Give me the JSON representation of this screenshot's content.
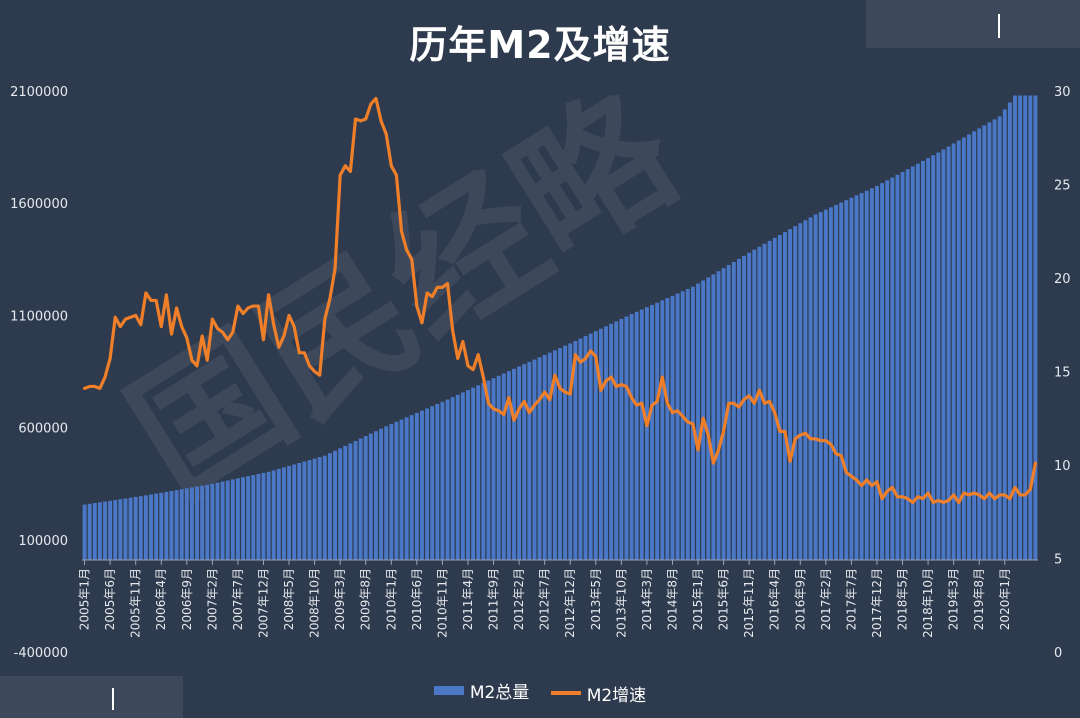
{
  "title": "历年M2及增速",
  "legend": {
    "bar_label": "M2总量",
    "line_label": "M2增速"
  },
  "colors": {
    "bar": "#4a78c7",
    "line": "#f07f2a",
    "background": "#2e3a4d",
    "watermark": "#5a6475"
  },
  "watermark_text": "国民经略",
  "chart_data": {
    "type": "bar+line",
    "title": "历年M2及增速",
    "left_axis": {
      "min": -400000,
      "max": 2100000,
      "ticks": [
        -400000,
        100000,
        600000,
        1100000,
        1600000,
        2100000
      ]
    },
    "right_axis": {
      "min": 0,
      "max": 30,
      "ticks": [
        0,
        5,
        10,
        15,
        20,
        25,
        30
      ]
    },
    "x_tick_labels": [
      "2005年1月",
      "2005年6月",
      "2005年11月",
      "2006年4月",
      "2006年9月",
      "2007年2月",
      "2007年7月",
      "2007年12月",
      "2008年5月",
      "2008年10月",
      "2009年3月",
      "2009年8月",
      "2010年1月",
      "2010年6月",
      "2010年11月",
      "2011年4月",
      "2011年9月",
      "2012年2月",
      "2012年7月",
      "2012年12月",
      "2013年5月",
      "2013年10月",
      "2014年3月",
      "2014年8月",
      "2015年1月",
      "2015年6月",
      "2015年11月",
      "2016年4月",
      "2016年9月",
      "2017年2月",
      "2017年7月",
      "2017年12月",
      "2018年5月",
      "2018年10月",
      "2019年3月",
      "2019年8月",
      "2020年1月"
    ],
    "m2_anchors": [
      [
        0,
        257000
      ],
      [
        12,
        298000
      ],
      [
        24,
        345000
      ],
      [
        36,
        403000
      ],
      [
        47,
        475000
      ],
      [
        59,
        606000
      ],
      [
        71,
        725000
      ],
      [
        83,
        852000
      ],
      [
        95,
        975000
      ],
      [
        107,
        1106000
      ],
      [
        119,
        1228000
      ],
      [
        131,
        1393000
      ],
      [
        143,
        1550000
      ],
      [
        155,
        1677000
      ],
      [
        167,
        1826000
      ],
      [
        179,
        1987000
      ],
      [
        182,
        2080000
      ]
    ],
    "growth_series": [
      14.1,
      14.2,
      14.2,
      14.1,
      14.7,
      15.7,
      17.9,
      17.4,
      17.8,
      17.9,
      18.0,
      17.5,
      19.2,
      18.8,
      18.8,
      17.4,
      19.1,
      17.0,
      18.4,
      17.4,
      16.8,
      15.6,
      15.3,
      16.9,
      15.6,
      17.8,
      17.3,
      17.1,
      16.7,
      17.1,
      18.5,
      18.1,
      18.4,
      18.5,
      18.5,
      16.7,
      19.1,
      17.5,
      16.3,
      16.9,
      18.0,
      17.4,
      16.0,
      16.0,
      15.3,
      15.0,
      14.8,
      17.8,
      18.9,
      20.5,
      25.5,
      26.0,
      25.7,
      28.5,
      28.4,
      28.5,
      29.3,
      29.6,
      28.4,
      27.7,
      26.0,
      25.5,
      22.5,
      21.5,
      21.0,
      18.5,
      17.6,
      19.2,
      19.0,
      19.5,
      19.5,
      19.7,
      17.2,
      15.7,
      16.6,
      15.3,
      15.1,
      15.9,
      14.7,
      13.3,
      13.0,
      12.9,
      12.7,
      13.6,
      12.4,
      13.0,
      13.4,
      12.8,
      13.2,
      13.5,
      13.9,
      13.5,
      14.8,
      14.1,
      13.9,
      13.8,
      15.9,
      15.5,
      15.7,
      16.1,
      15.8,
      14.0,
      14.5,
      14.7,
      14.2,
      14.3,
      14.2,
      13.6,
      13.2,
      13.3,
      12.1,
      13.2,
      13.4,
      14.7,
      13.3,
      12.8,
      12.9,
      12.6,
      12.3,
      12.2,
      10.8,
      12.5,
      11.6,
      10.1,
      10.8,
      11.8,
      13.3,
      13.3,
      13.1,
      13.5,
      13.7,
      13.3,
      14.0,
      13.3,
      13.4,
      12.8,
      11.8,
      11.8,
      10.2,
      11.4,
      11.6,
      11.7,
      11.4,
      11.4,
      11.3,
      11.3,
      11.1,
      10.6,
      10.5,
      9.6,
      9.4,
      9.2,
      8.9,
      9.2,
      8.9,
      9.1,
      8.2,
      8.6,
      8.8,
      8.3,
      8.3,
      8.2,
      8.0,
      8.3,
      8.2,
      8.5,
      8.0,
      8.1,
      8.0,
      8.1,
      8.4,
      8.0,
      8.5,
      8.4,
      8.5,
      8.4,
      8.2,
      8.5,
      8.2,
      8.4,
      8.4,
      8.2,
      8.8,
      8.4,
      8.4,
      8.7,
      10.1
    ]
  }
}
